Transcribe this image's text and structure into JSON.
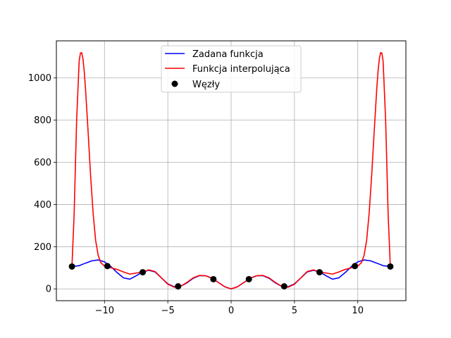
{
  "chart_data": {
    "type": "line",
    "title": "",
    "xlabel": "",
    "ylabel": "",
    "xlim": [
      -13.8,
      13.8
    ],
    "ylim": [
      -56,
      1176
    ],
    "x_ticks": [
      -10,
      -5,
      0,
      5,
      10
    ],
    "x_tick_labels": [
      "−10",
      "−5",
      "0",
      "5",
      "10"
    ],
    "y_ticks": [
      0,
      200,
      400,
      600,
      800,
      1000
    ],
    "y_tick_labels": [
      "0",
      "200",
      "400",
      "600",
      "800",
      "1000"
    ],
    "grid": true,
    "legend_position": "top-center",
    "series": [
      {
        "name": "Zadana funkcja",
        "kind": "line",
        "color": "#0000ff",
        "x": [
          -12.57,
          -12.0,
          -11.5,
          -11.0,
          -10.5,
          -10.0,
          -9.5,
          -9.0,
          -8.5,
          -8.0,
          -7.5,
          -7.0,
          -6.5,
          -6.0,
          -5.5,
          -5.0,
          -4.5,
          -4.0,
          -3.5,
          -3.0,
          -2.5,
          -2.0,
          -1.5,
          -1.0,
          -0.5,
          0.0,
          0.5,
          1.0,
          1.5,
          2.0,
          2.5,
          3.0,
          3.5,
          4.0,
          4.5,
          5.0,
          5.5,
          6.0,
          6.5,
          7.0,
          7.5,
          8.0,
          8.5,
          9.0,
          9.5,
          10.0,
          10.5,
          11.0,
          11.5,
          12.0,
          12.57
        ],
        "y": [
          106,
          110,
          122,
          133,
          137,
          128,
          106,
          77,
          52,
          46,
          62,
          80,
          88,
          80,
          52,
          24,
          10,
          12,
          28,
          50,
          63,
          62,
          50,
          30,
          10,
          0,
          10,
          30,
          50,
          62,
          63,
          50,
          28,
          12,
          10,
          24,
          52,
          80,
          88,
          80,
          62,
          46,
          52,
          77,
          106,
          128,
          137,
          133,
          122,
          110,
          106
        ]
      },
      {
        "name": "Funkcja interpolująca",
        "kind": "line",
        "color": "#ff0000",
        "x": [
          -12.57,
          -12.4,
          -12.2,
          -12.0,
          -11.9,
          -11.8,
          -11.7,
          -11.6,
          -11.5,
          -11.3,
          -11.1,
          -10.9,
          -10.7,
          -10.5,
          -10.3,
          -10.0,
          -9.8,
          -9.5,
          -9.0,
          -8.5,
          -8.0,
          -7.5,
          -7.0,
          -6.5,
          -6.0,
          -5.5,
          -5.0,
          -4.5,
          -4.2,
          -4.0,
          -3.5,
          -3.0,
          -2.5,
          -2.0,
          -1.5,
          -1.0,
          -0.5,
          0.0,
          0.5,
          1.0,
          1.5,
          2.0,
          2.5,
          3.0,
          3.5,
          4.0,
          4.2,
          4.5,
          5.0,
          5.5,
          6.0,
          6.5,
          7.0,
          7.5,
          8.0,
          8.5,
          9.0,
          9.5,
          9.8,
          10.0,
          10.3,
          10.5,
          10.7,
          10.9,
          11.1,
          11.3,
          11.5,
          11.6,
          11.7,
          11.8,
          11.9,
          12.0,
          12.2,
          12.4,
          12.57
        ],
        "y": [
          106,
          350,
          800,
          1080,
          1118,
          1120,
          1090,
          1030,
          950,
          750,
          540,
          360,
          230,
          160,
          125,
          108,
          104,
          100,
          92,
          80,
          70,
          75,
          80,
          90,
          82,
          52,
          22,
          8,
          10,
          12,
          30,
          52,
          64,
          62,
          50,
          30,
          10,
          0,
          10,
          30,
          50,
          62,
          64,
          52,
          30,
          12,
          10,
          8,
          22,
          52,
          82,
          90,
          80,
          75,
          70,
          80,
          92,
          100,
          104,
          108,
          125,
          160,
          230,
          360,
          540,
          750,
          950,
          1030,
          1090,
          1120,
          1118,
          1080,
          800,
          350,
          106
        ]
      },
      {
        "name": "Węzły",
        "kind": "scatter",
        "color": "#000000",
        "x": [
          -12.57,
          -9.77,
          -6.98,
          -4.19,
          -1.4,
          1.4,
          4.19,
          6.98,
          9.77,
          12.57
        ],
        "y": [
          106,
          108,
          79,
          12,
          46,
          46,
          12,
          79,
          108,
          106
        ]
      }
    ]
  }
}
